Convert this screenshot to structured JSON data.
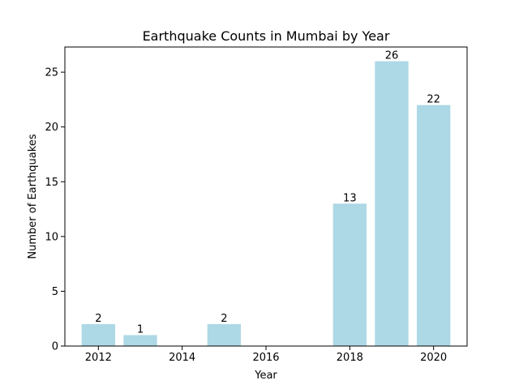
{
  "chart_data": {
    "type": "bar",
    "title": "Earthquake Counts in Mumbai by Year",
    "xlabel": "Year",
    "ylabel": "Number of Earthquakes",
    "x": [
      2012,
      2013,
      2015,
      2018,
      2019,
      2020
    ],
    "values": [
      2,
      1,
      2,
      13,
      26,
      22
    ],
    "data_labels": [
      "2",
      "1",
      "2",
      "13",
      "26",
      "22"
    ],
    "xlim": [
      2011.2,
      2020.8
    ],
    "ylim": [
      0,
      27.3
    ],
    "x_ticks": [
      2012,
      2014,
      2016,
      2018,
      2020
    ],
    "x_tick_labels": [
      "2012",
      "2014",
      "2016",
      "2018",
      "2020"
    ],
    "y_ticks": [
      0,
      5,
      10,
      15,
      20,
      25
    ],
    "y_tick_labels": [
      "0",
      "5",
      "10",
      "15",
      "20",
      "25"
    ],
    "bar_color": "#add8e6",
    "grid": false,
    "legend": "none"
  }
}
